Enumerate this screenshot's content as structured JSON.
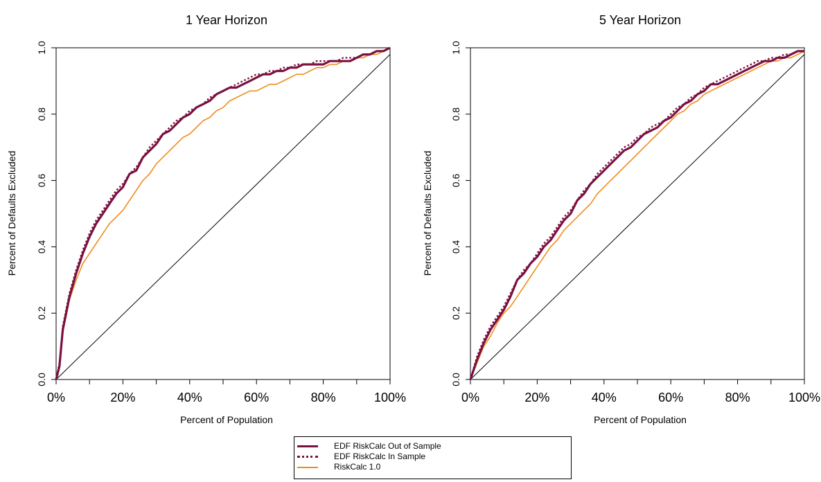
{
  "chart_data": [
    {
      "type": "line",
      "title": "1 Year Horizon",
      "xlabel": "Percent of Population",
      "ylabel": "Percent of Defaults Excluded",
      "xlim": [
        0,
        100
      ],
      "ylim": [
        0,
        1
      ],
      "x_tick_labels": [
        "0%",
        "20%",
        "40%",
        "60%",
        "80%",
        "100%"
      ],
      "y_tick_labels": [
        "0.0",
        "0.2",
        "0.4",
        "0.6",
        "0.8",
        "1.0"
      ],
      "grid": false,
      "series": [
        {
          "name": "EDF RiskCalc Out of Sample",
          "color": "#7b1040",
          "style": "solid-thick",
          "x": [
            0,
            1,
            2,
            4,
            6,
            8,
            10,
            12,
            14,
            16,
            18,
            20,
            22,
            24,
            26,
            28,
            30,
            32,
            34,
            36,
            38,
            40,
            42,
            44,
            46,
            48,
            50,
            52,
            54,
            56,
            58,
            60,
            62,
            64,
            66,
            68,
            70,
            72,
            74,
            76,
            78,
            80,
            82,
            84,
            86,
            88,
            90,
            92,
            94,
            96,
            98,
            100
          ],
          "y": [
            0,
            0.04,
            0.15,
            0.25,
            0.32,
            0.38,
            0.43,
            0.47,
            0.5,
            0.53,
            0.56,
            0.58,
            0.62,
            0.63,
            0.67,
            0.69,
            0.71,
            0.74,
            0.75,
            0.77,
            0.79,
            0.8,
            0.82,
            0.83,
            0.84,
            0.86,
            0.87,
            0.88,
            0.88,
            0.89,
            0.9,
            0.91,
            0.92,
            0.92,
            0.93,
            0.93,
            0.94,
            0.94,
            0.95,
            0.95,
            0.95,
            0.95,
            0.96,
            0.96,
            0.96,
            0.96,
            0.97,
            0.98,
            0.98,
            0.99,
            0.99,
            1.0
          ]
        },
        {
          "name": "EDF RiskCalc In Sample",
          "color": "#7b1040",
          "style": "dotted",
          "x": [
            0,
            1,
            2,
            4,
            6,
            8,
            10,
            12,
            14,
            16,
            18,
            20,
            22,
            24,
            26,
            28,
            30,
            32,
            34,
            36,
            38,
            40,
            42,
            44,
            46,
            48,
            50,
            52,
            54,
            56,
            58,
            60,
            62,
            64,
            66,
            68,
            70,
            72,
            74,
            76,
            78,
            80,
            82,
            84,
            86,
            88,
            90,
            92,
            94,
            96,
            98,
            100
          ],
          "y": [
            0,
            0.05,
            0.16,
            0.26,
            0.33,
            0.39,
            0.44,
            0.48,
            0.51,
            0.54,
            0.57,
            0.59,
            0.62,
            0.64,
            0.67,
            0.7,
            0.72,
            0.74,
            0.76,
            0.78,
            0.79,
            0.81,
            0.82,
            0.83,
            0.85,
            0.86,
            0.87,
            0.88,
            0.89,
            0.9,
            0.91,
            0.92,
            0.92,
            0.93,
            0.93,
            0.94,
            0.94,
            0.95,
            0.95,
            0.95,
            0.96,
            0.96,
            0.96,
            0.96,
            0.97,
            0.97,
            0.97,
            0.98,
            0.98,
            0.99,
            0.99,
            1.0
          ]
        },
        {
          "name": "RiskCalc 1.0",
          "color": "#f08c1a",
          "style": "solid-thin",
          "x": [
            0,
            1,
            2,
            4,
            6,
            8,
            10,
            12,
            14,
            16,
            18,
            20,
            22,
            24,
            26,
            28,
            30,
            32,
            34,
            36,
            38,
            40,
            42,
            44,
            46,
            48,
            50,
            52,
            54,
            56,
            58,
            60,
            62,
            64,
            66,
            68,
            70,
            72,
            74,
            76,
            78,
            80,
            82,
            84,
            86,
            88,
            90,
            92,
            94,
            96,
            98,
            100
          ],
          "y": [
            0,
            0.04,
            0.14,
            0.24,
            0.3,
            0.35,
            0.38,
            0.41,
            0.44,
            0.47,
            0.49,
            0.51,
            0.54,
            0.57,
            0.6,
            0.62,
            0.65,
            0.67,
            0.69,
            0.71,
            0.73,
            0.74,
            0.76,
            0.78,
            0.79,
            0.81,
            0.82,
            0.84,
            0.85,
            0.86,
            0.87,
            0.87,
            0.88,
            0.89,
            0.89,
            0.9,
            0.91,
            0.92,
            0.92,
            0.93,
            0.94,
            0.94,
            0.95,
            0.95,
            0.96,
            0.96,
            0.97,
            0.97,
            0.98,
            0.98,
            0.99,
            1.0
          ]
        },
        {
          "name": "",
          "color": "#000000",
          "style": "diagonal",
          "x": [
            0,
            100
          ],
          "y": [
            0,
            0.98
          ]
        }
      ]
    },
    {
      "type": "line",
      "title": "5 Year Horizon",
      "xlabel": "Percent of Population",
      "ylabel": "Percent of Defaults Excluded",
      "xlim": [
        0,
        100
      ],
      "ylim": [
        0,
        1
      ],
      "x_tick_labels": [
        "0%",
        "20%",
        "40%",
        "60%",
        "80%",
        "100%"
      ],
      "y_tick_labels": [
        "0.0",
        "0.2",
        "0.4",
        "0.6",
        "0.8",
        "1.0"
      ],
      "grid": false,
      "series": [
        {
          "name": "EDF RiskCalc Out of Sample",
          "color": "#7b1040",
          "style": "solid-thick",
          "x": [
            0,
            2,
            4,
            6,
            8,
            10,
            12,
            14,
            16,
            18,
            20,
            22,
            24,
            26,
            28,
            30,
            32,
            34,
            36,
            38,
            40,
            42,
            44,
            46,
            48,
            50,
            52,
            54,
            56,
            58,
            60,
            62,
            64,
            66,
            68,
            70,
            72,
            74,
            76,
            78,
            80,
            82,
            84,
            86,
            88,
            90,
            92,
            94,
            96,
            98,
            100
          ],
          "y": [
            0,
            0.06,
            0.11,
            0.15,
            0.18,
            0.21,
            0.25,
            0.3,
            0.32,
            0.35,
            0.37,
            0.4,
            0.42,
            0.45,
            0.48,
            0.5,
            0.54,
            0.56,
            0.59,
            0.61,
            0.63,
            0.65,
            0.67,
            0.69,
            0.7,
            0.72,
            0.74,
            0.75,
            0.76,
            0.78,
            0.79,
            0.81,
            0.83,
            0.84,
            0.86,
            0.87,
            0.89,
            0.89,
            0.9,
            0.91,
            0.92,
            0.93,
            0.94,
            0.95,
            0.96,
            0.96,
            0.97,
            0.97,
            0.98,
            0.99,
            0.99
          ]
        },
        {
          "name": "EDF RiskCalc In Sample",
          "color": "#7b1040",
          "style": "dotted",
          "x": [
            0,
            2,
            4,
            6,
            8,
            10,
            12,
            14,
            16,
            18,
            20,
            22,
            24,
            26,
            28,
            30,
            32,
            34,
            36,
            38,
            40,
            42,
            44,
            46,
            48,
            50,
            52,
            54,
            56,
            58,
            60,
            62,
            64,
            66,
            68,
            70,
            72,
            74,
            76,
            78,
            80,
            82,
            84,
            86,
            88,
            90,
            92,
            94,
            96,
            98,
            100
          ],
          "y": [
            0,
            0.07,
            0.12,
            0.16,
            0.19,
            0.22,
            0.26,
            0.3,
            0.33,
            0.35,
            0.38,
            0.41,
            0.43,
            0.46,
            0.49,
            0.51,
            0.54,
            0.57,
            0.59,
            0.62,
            0.64,
            0.66,
            0.68,
            0.7,
            0.71,
            0.73,
            0.74,
            0.76,
            0.77,
            0.78,
            0.8,
            0.82,
            0.83,
            0.85,
            0.86,
            0.88,
            0.89,
            0.9,
            0.91,
            0.92,
            0.93,
            0.94,
            0.95,
            0.96,
            0.96,
            0.97,
            0.97,
            0.98,
            0.98,
            0.99,
            0.99
          ]
        },
        {
          "name": "RiskCalc 1.0",
          "color": "#f08c1a",
          "style": "solid-thin",
          "x": [
            0,
            2,
            4,
            6,
            8,
            10,
            12,
            14,
            16,
            18,
            20,
            22,
            24,
            26,
            28,
            30,
            32,
            34,
            36,
            38,
            40,
            42,
            44,
            46,
            48,
            50,
            52,
            54,
            56,
            58,
            60,
            62,
            64,
            66,
            68,
            70,
            72,
            74,
            76,
            78,
            80,
            82,
            84,
            86,
            88,
            90,
            92,
            94,
            96,
            98,
            100
          ],
          "y": [
            0,
            0.05,
            0.1,
            0.13,
            0.17,
            0.2,
            0.22,
            0.25,
            0.28,
            0.31,
            0.34,
            0.37,
            0.4,
            0.42,
            0.45,
            0.47,
            0.49,
            0.51,
            0.53,
            0.56,
            0.58,
            0.6,
            0.62,
            0.64,
            0.66,
            0.68,
            0.7,
            0.72,
            0.74,
            0.76,
            0.78,
            0.8,
            0.81,
            0.83,
            0.84,
            0.86,
            0.87,
            0.88,
            0.89,
            0.9,
            0.91,
            0.92,
            0.93,
            0.94,
            0.95,
            0.96,
            0.96,
            0.97,
            0.97,
            0.98,
            0.99
          ]
        },
        {
          "name": "",
          "color": "#000000",
          "style": "diagonal",
          "x": [
            0,
            100
          ],
          "y": [
            0,
            0.98
          ]
        }
      ]
    }
  ],
  "legend": {
    "placement": "bottom-center",
    "entries": [
      {
        "label": "EDF RiskCalc Out of Sample",
        "color": "#7b1040",
        "style": "solid-thick"
      },
      {
        "label": "EDF RiskCalc In Sample",
        "color": "#7b1040",
        "style": "dotted"
      },
      {
        "label": "RiskCalc 1.0",
        "color": "#f08c1a",
        "style": "solid-thin"
      }
    ]
  }
}
